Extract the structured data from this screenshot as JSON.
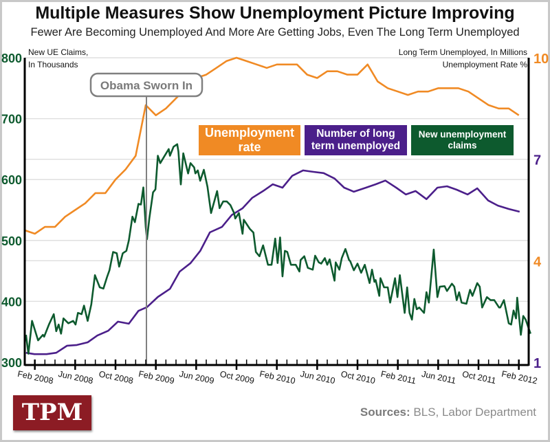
{
  "title": "Multiple Measures Show Unemployment Picture Improving",
  "subtitle": "Fewer Are Becoming Unemployed And More Are Getting Jobs, Even The Long Term Unemployed",
  "logo_text": "TPM",
  "sources_label": "Sources:",
  "sources_text": " BLS, Labor Department",
  "colors": {
    "unemployment_rate": "#f08a24",
    "long_term": "#4b1f8a",
    "claims": "#0d5a2e",
    "annotation": "#808080",
    "grid": "#dddddd",
    "logo_bg": "#8c1c24"
  },
  "chart_data": {
    "type": "line",
    "title": "Multiple Measures Show Unemployment Picture Improving",
    "left_axis": {
      "label_line1": "New UE Claims,",
      "label_line2": "In Thousands",
      "ticks": [
        300,
        400,
        500,
        600,
        700,
        800
      ],
      "ylim": [
        300,
        800
      ],
      "color": "#0d5a2e"
    },
    "right_axis": {
      "label_line1": "Long Term Unemployed, In Millions",
      "label_line2": "Unemployment Rate %",
      "ticks": [
        {
          "value": 1,
          "color": "#4b1f8a"
        },
        {
          "value": 4,
          "color": "#f08a24"
        },
        {
          "value": 7,
          "color": "#4b1f8a"
        },
        {
          "value": 10,
          "color": "#f08a24"
        }
      ],
      "ylim": [
        1,
        10
      ]
    },
    "x_axis": {
      "range": [
        "2008-01",
        "2012-03"
      ],
      "tick_labels": [
        "Feb 2008",
        "Jun 2008",
        "Oct 2008",
        "Feb 2009",
        "Jun 2009",
        "Oct 2009",
        "Feb 2010",
        "Jun 2010",
        "Oct 2010",
        "Feb 2011",
        "Jun 2011",
        "Oct 2011",
        "Feb 2012"
      ]
    },
    "grid": true,
    "annotation": {
      "text": "Obama Sworn In",
      "x": "2009-01"
    },
    "legend_placement": "center",
    "series": [
      {
        "name": "Unemployment rate",
        "axis": "right",
        "color": "#f08a24",
        "start": "2008-01",
        "frequency": "monthly",
        "values": [
          4.9,
          4.8,
          5.0,
          5.0,
          5.3,
          5.5,
          5.7,
          6.0,
          6.0,
          6.4,
          6.7,
          7.1,
          8.6,
          8.3,
          8.5,
          8.8,
          9.1,
          9.4,
          9.5,
          9.7,
          9.9,
          10.0,
          9.9,
          9.8,
          9.7,
          9.8,
          9.8,
          9.8,
          9.5,
          9.4,
          9.6,
          9.6,
          9.5,
          9.5,
          9.8,
          9.3,
          9.1,
          9.0,
          8.9,
          9.0,
          9.0,
          9.1,
          9.1,
          9.1,
          9.0,
          8.8,
          8.6,
          8.5,
          8.5,
          8.3
        ]
      },
      {
        "name": "Number of long term unemployed",
        "axis": "right",
        "color": "#4b1f8a",
        "points": [
          [
            2008.01,
            1.28
          ],
          [
            2008.08,
            1.24
          ],
          [
            2008.18,
            1.24
          ],
          [
            2008.26,
            1.28
          ],
          [
            2008.35,
            1.49
          ],
          [
            2008.43,
            1.51
          ],
          [
            2008.52,
            1.59
          ],
          [
            2008.6,
            1.79
          ],
          [
            2008.69,
            1.93
          ],
          [
            2008.77,
            2.2
          ],
          [
            2008.86,
            2.14
          ],
          [
            2008.94,
            2.52
          ],
          [
            2009.01,
            2.63
          ],
          [
            2009.1,
            2.93
          ],
          [
            2009.2,
            3.17
          ],
          [
            2009.28,
            3.68
          ],
          [
            2009.37,
            3.93
          ],
          [
            2009.45,
            4.29
          ],
          [
            2009.53,
            4.84
          ],
          [
            2009.63,
            5.0
          ],
          [
            2009.71,
            5.35
          ],
          [
            2009.8,
            5.55
          ],
          [
            2009.88,
            5.86
          ],
          [
            2009.97,
            6.06
          ],
          [
            2010.05,
            6.26
          ],
          [
            2010.13,
            6.16
          ],
          [
            2010.21,
            6.51
          ],
          [
            2010.3,
            6.67
          ],
          [
            2010.38,
            6.63
          ],
          [
            2010.47,
            6.59
          ],
          [
            2010.56,
            6.43
          ],
          [
            2010.64,
            6.16
          ],
          [
            2010.72,
            6.04
          ],
          [
            2010.82,
            6.16
          ],
          [
            2010.9,
            6.26
          ],
          [
            2010.98,
            6.37
          ],
          [
            2011.07,
            6.16
          ],
          [
            2011.15,
            5.96
          ],
          [
            2011.23,
            6.06
          ],
          [
            2011.32,
            5.82
          ],
          [
            2011.41,
            6.16
          ],
          [
            2011.49,
            6.2
          ],
          [
            2011.57,
            6.1
          ],
          [
            2011.66,
            5.96
          ],
          [
            2011.74,
            6.14
          ],
          [
            2011.83,
            5.78
          ],
          [
            2011.91,
            5.63
          ],
          [
            2012.0,
            5.53
          ],
          [
            2012.09,
            5.45
          ]
        ]
      },
      {
        "name": "New unemployment claims",
        "axis": "left",
        "color": "#0d5a2e",
        "points": [
          [
            2008.01,
            345
          ],
          [
            2008.03,
            314
          ],
          [
            2008.06,
            368
          ],
          [
            2008.11,
            336
          ],
          [
            2008.15,
            345
          ],
          [
            2008.16,
            342
          ],
          [
            2008.2,
            362
          ],
          [
            2008.24,
            379
          ],
          [
            2008.26,
            351
          ],
          [
            2008.28,
            362
          ],
          [
            2008.3,
            347
          ],
          [
            2008.32,
            372
          ],
          [
            2008.36,
            364
          ],
          [
            2008.4,
            368
          ],
          [
            2008.42,
            362
          ],
          [
            2008.44,
            381
          ],
          [
            2008.47,
            379
          ],
          [
            2008.49,
            393
          ],
          [
            2008.52,
            368
          ],
          [
            2008.55,
            395
          ],
          [
            2008.58,
            443
          ],
          [
            2008.62,
            423
          ],
          [
            2008.65,
            421
          ],
          [
            2008.68,
            440
          ],
          [
            2008.7,
            451
          ],
          [
            2008.73,
            481
          ],
          [
            2008.76,
            479
          ],
          [
            2008.78,
            457
          ],
          [
            2008.81,
            479
          ],
          [
            2008.84,
            483
          ],
          [
            2008.86,
            500
          ],
          [
            2008.89,
            539
          ],
          [
            2008.91,
            530
          ],
          [
            2008.94,
            560
          ],
          [
            2008.96,
            559
          ],
          [
            2008.98,
            587
          ],
          [
            2009.0,
            522
          ],
          [
            2009.01,
            502
          ],
          [
            2009.03,
            537
          ],
          [
            2009.06,
            579
          ],
          [
            2009.08,
            584
          ],
          [
            2009.1,
            639
          ],
          [
            2009.12,
            627
          ],
          [
            2009.15,
            637
          ],
          [
            2009.19,
            650
          ],
          [
            2009.2,
            639
          ],
          [
            2009.23,
            654
          ],
          [
            2009.26,
            658
          ],
          [
            2009.27,
            646
          ],
          [
            2009.29,
            592
          ],
          [
            2009.31,
            643
          ],
          [
            2009.35,
            610
          ],
          [
            2009.37,
            627
          ],
          [
            2009.4,
            620
          ],
          [
            2009.41,
            610
          ],
          [
            2009.43,
            615
          ],
          [
            2009.45,
            598
          ],
          [
            2009.48,
            616
          ],
          [
            2009.51,
            588
          ],
          [
            2009.54,
            545
          ],
          [
            2009.59,
            581
          ],
          [
            2009.61,
            553
          ],
          [
            2009.64,
            564
          ],
          [
            2009.67,
            564
          ],
          [
            2009.7,
            558
          ],
          [
            2009.73,
            545
          ],
          [
            2009.74,
            536
          ],
          [
            2009.77,
            545
          ],
          [
            2009.8,
            511
          ],
          [
            2009.81,
            534
          ],
          [
            2009.86,
            519
          ],
          [
            2009.89,
            513
          ],
          [
            2009.91,
            481
          ],
          [
            2009.94,
            474
          ],
          [
            2009.97,
            492
          ],
          [
            2010.01,
            460
          ],
          [
            2010.04,
            460
          ],
          [
            2010.07,
            503
          ],
          [
            2010.09,
            463
          ],
          [
            2010.11,
            505
          ],
          [
            2010.13,
            441
          ],
          [
            2010.15,
            483
          ],
          [
            2010.17,
            481
          ],
          [
            2010.2,
            460
          ],
          [
            2010.24,
            460
          ],
          [
            2010.27,
            449
          ],
          [
            2010.28,
            468
          ],
          [
            2010.31,
            474
          ],
          [
            2010.34,
            455
          ],
          [
            2010.38,
            452
          ],
          [
            2010.4,
            475
          ],
          [
            2010.43,
            464
          ],
          [
            2010.45,
            462
          ],
          [
            2010.48,
            471
          ],
          [
            2010.5,
            460
          ],
          [
            2010.52,
            469
          ],
          [
            2010.56,
            434
          ],
          [
            2010.57,
            464
          ],
          [
            2010.6,
            452
          ],
          [
            2010.62,
            471
          ],
          [
            2010.65,
            486
          ],
          [
            2010.68,
            468
          ],
          [
            2010.69,
            466
          ],
          [
            2010.72,
            451
          ],
          [
            2010.75,
            462
          ],
          [
            2010.78,
            447
          ],
          [
            2010.81,
            460
          ],
          [
            2010.85,
            430
          ],
          [
            2010.87,
            452
          ],
          [
            2010.89,
            432
          ],
          [
            2010.9,
            435
          ],
          [
            2010.93,
            409
          ],
          [
            2010.94,
            438
          ],
          [
            2010.97,
            423
          ],
          [
            2011.0,
            423
          ],
          [
            2011.02,
            398
          ],
          [
            2011.06,
            438
          ],
          [
            2011.08,
            407
          ],
          [
            2011.1,
            443
          ],
          [
            2011.14,
            381
          ],
          [
            2011.16,
            423
          ],
          [
            2011.18,
            381
          ],
          [
            2011.2,
            370
          ],
          [
            2011.22,
            404
          ],
          [
            2011.24,
            387
          ],
          [
            2011.26,
            390
          ],
          [
            2011.3,
            381
          ],
          [
            2011.32,
            415
          ],
          [
            2011.34,
            398
          ],
          [
            2011.38,
            485
          ],
          [
            2011.41,
            407
          ],
          [
            2011.43,
            424
          ],
          [
            2011.47,
            425
          ],
          [
            2011.49,
            417
          ],
          [
            2011.53,
            429
          ],
          [
            2011.55,
            424
          ],
          [
            2011.57,
            402
          ],
          [
            2011.59,
            415
          ],
          [
            2011.61,
            398
          ],
          [
            2011.65,
            396
          ],
          [
            2011.68,
            419
          ],
          [
            2011.7,
            409
          ],
          [
            2011.74,
            430
          ],
          [
            2011.76,
            424
          ],
          [
            2011.78,
            390
          ],
          [
            2011.82,
            407
          ],
          [
            2011.85,
            402
          ],
          [
            2011.88,
            402
          ],
          [
            2011.92,
            390
          ],
          [
            2011.93,
            390
          ],
          [
            2011.96,
            402
          ],
          [
            2012.0,
            364
          ],
          [
            2012.02,
            362
          ],
          [
            2012.04,
            385
          ],
          [
            2012.06,
            372
          ],
          [
            2012.07,
            406
          ],
          [
            2012.1,
            345
          ],
          [
            2012.12,
            376
          ],
          [
            2012.14,
            370
          ],
          [
            2012.18,
            347
          ]
        ]
      }
    ]
  },
  "legend": [
    {
      "line1": "Unemployment",
      "line2": "rate"
    },
    {
      "line1": "Number of long",
      "line2": "term unemployed"
    },
    {
      "line1": "New unemployment",
      "line2": "claims"
    }
  ]
}
